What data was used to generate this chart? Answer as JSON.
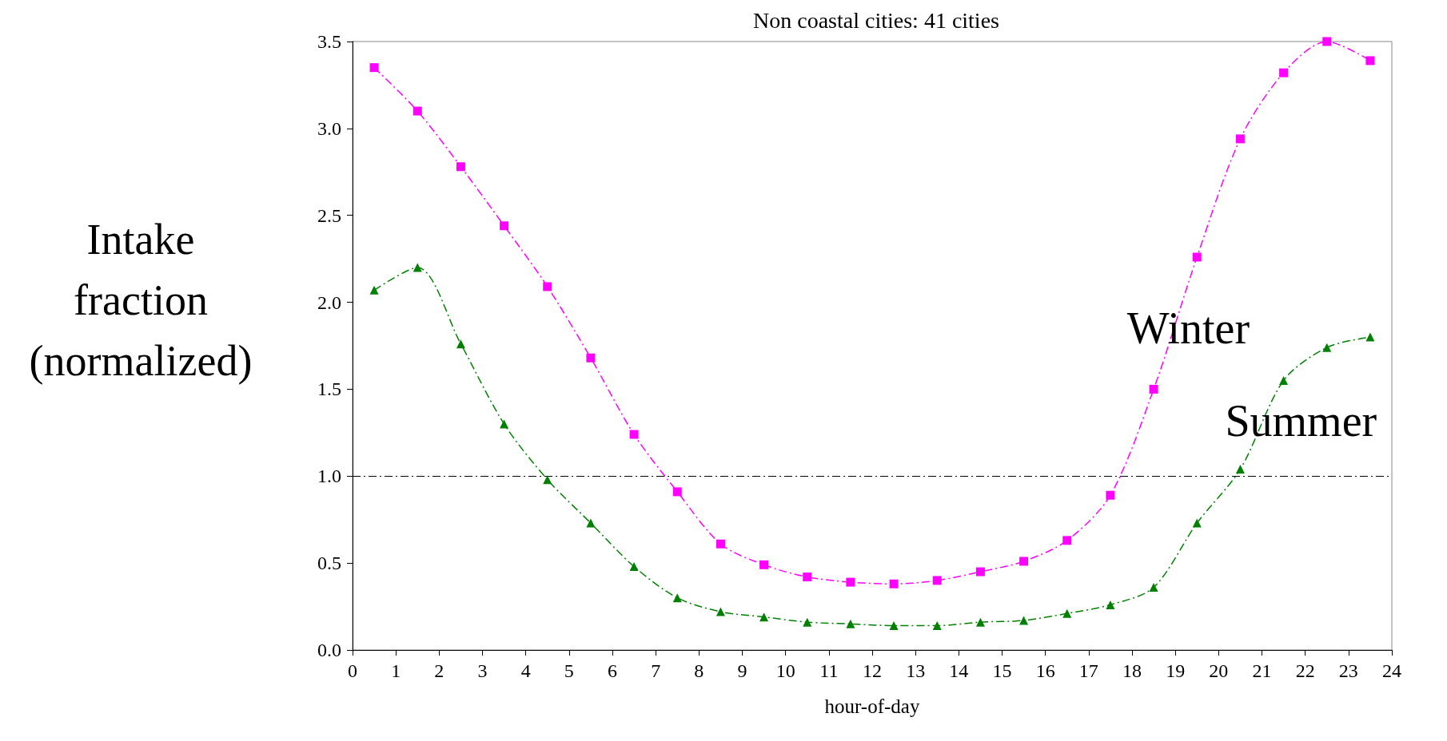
{
  "chart_data": {
    "type": "line",
    "title": "Non coastal cities: 41 cities",
    "xlabel": "hour-of-day",
    "ylabel": "Intake fraction (normalized)",
    "x": [
      0.5,
      1.5,
      2.5,
      3.5,
      4.5,
      5.5,
      6.5,
      7.5,
      8.5,
      9.5,
      10.5,
      11.5,
      12.5,
      13.5,
      14.5,
      15.5,
      16.5,
      17.5,
      18.5,
      19.5,
      20.5,
      21.5,
      22.5,
      23.5
    ],
    "series": [
      {
        "name": "Winter",
        "color": "#ff00ff",
        "marker": "square",
        "values": [
          3.35,
          3.1,
          2.78,
          2.44,
          2.09,
          1.68,
          1.24,
          0.91,
          0.61,
          0.49,
          0.42,
          0.39,
          0.38,
          0.4,
          0.45,
          0.51,
          0.63,
          0.89,
          1.5,
          2.26,
          2.94,
          3.32,
          3.5,
          3.39
        ]
      },
      {
        "name": "Summer",
        "color": "#008000",
        "marker": "triangle",
        "values": [
          2.07,
          2.2,
          1.76,
          1.3,
          0.98,
          0.73,
          0.48,
          0.3,
          0.22,
          0.19,
          0.16,
          0.15,
          0.14,
          0.14,
          0.16,
          0.17,
          0.21,
          0.26,
          0.36,
          0.73,
          1.04,
          1.55,
          1.74,
          1.8
        ]
      }
    ],
    "xlim": [
      0,
      24
    ],
    "xticks": [
      0,
      1,
      2,
      3,
      4,
      5,
      6,
      7,
      8,
      9,
      10,
      11,
      12,
      13,
      14,
      15,
      16,
      17,
      18,
      19,
      20,
      21,
      22,
      23,
      24
    ],
    "ylim": [
      0,
      3.5
    ],
    "yticks": [
      {
        "value": 0,
        "label": "0.0"
      },
      {
        "value": 0.5,
        "label": "0.5"
      },
      {
        "value": 1,
        "label": "1.0"
      },
      {
        "value": 1.5,
        "label": "1.5"
      },
      {
        "value": 2,
        "label": "2.0"
      },
      {
        "value": 2.5,
        "label": "2.5"
      },
      {
        "value": 3,
        "label": "3.0"
      },
      {
        "value": 3.5,
        "label": "3.5"
      }
    ],
    "ref_lines": [
      {
        "axis": "y",
        "value": 1.0,
        "color": "#000000",
        "line_style": "dashed"
      }
    ],
    "line_style": "dashed",
    "grid": false,
    "legend": false
  }
}
